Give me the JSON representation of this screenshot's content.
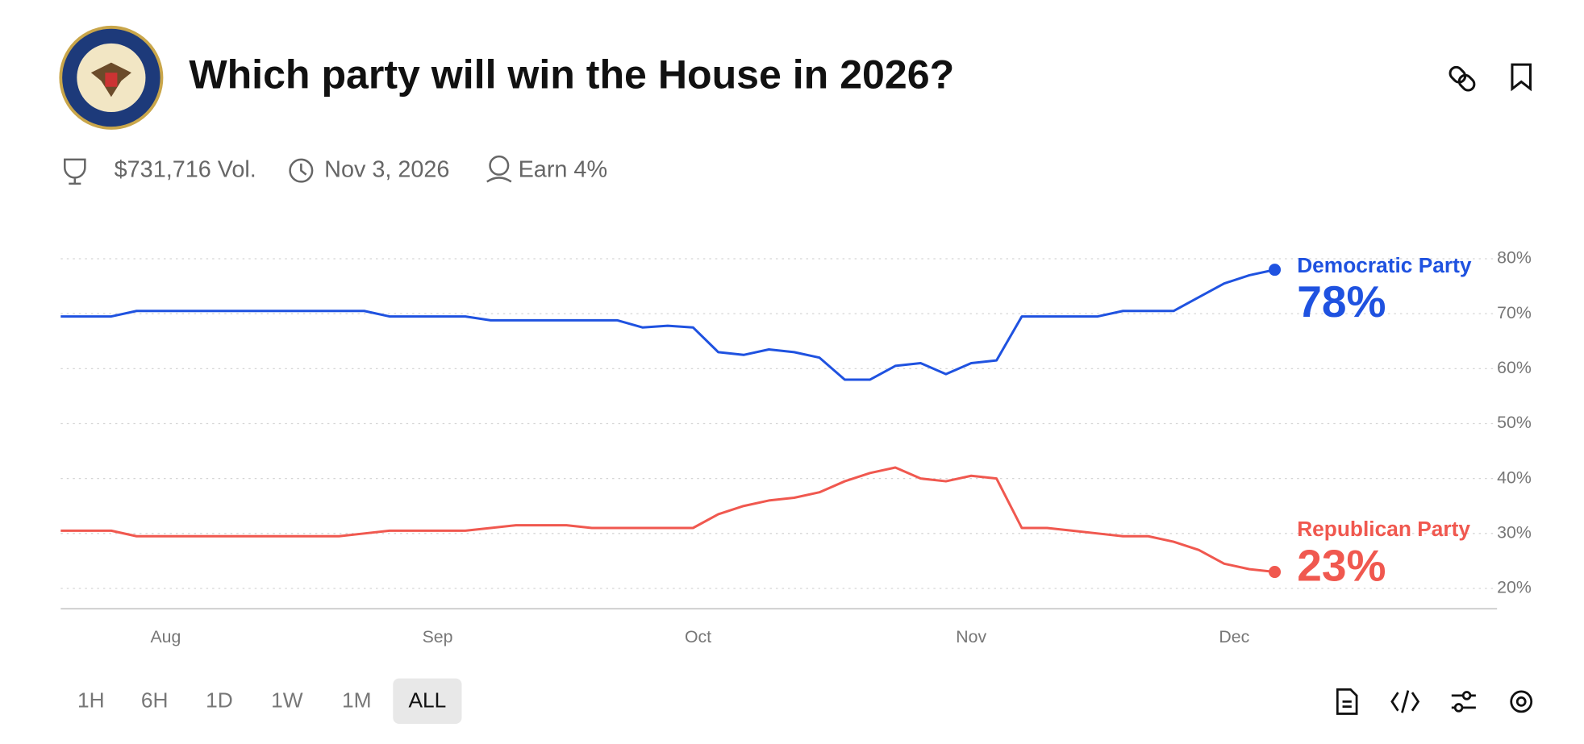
{
  "header": {
    "title": "Which party will win the House in 2026?",
    "volume": "$731,716 Vol.",
    "end_date": "Nov 3, 2026",
    "earn": "Earn 4%"
  },
  "timeframes": {
    "options": [
      "1H",
      "6H",
      "1D",
      "1W",
      "1M",
      "ALL"
    ],
    "selected": 5
  },
  "chart_data": {
    "type": "line",
    "grid": true,
    "xlim": [
      0,
      56.8
    ],
    "xticks": [
      {
        "value": 4.15,
        "label": "Aug"
      },
      {
        "value": 14.9,
        "label": "Sep"
      },
      {
        "value": 25.2,
        "label": "Oct"
      },
      {
        "value": 36.0,
        "label": "Nov"
      },
      {
        "value": 46.4,
        "label": "Dec"
      }
    ],
    "ylim": [
      16.3,
      83
    ],
    "yticks": [
      {
        "value": 20,
        "label": "20%"
      },
      {
        "value": 30,
        "label": "30%"
      },
      {
        "value": 40,
        "label": "40%"
      },
      {
        "value": 50,
        "label": "50%"
      },
      {
        "value": 60,
        "label": "60%"
      },
      {
        "value": 70,
        "label": "70%"
      },
      {
        "value": 80,
        "label": "80%"
      }
    ],
    "series": [
      {
        "name": "Democratic Party",
        "color": "#1f52e0",
        "values": [
          69.5,
          69.5,
          69.5,
          70.5,
          70.5,
          70.5,
          70.5,
          70.5,
          70.5,
          70.5,
          70.5,
          70.5,
          70.5,
          69.5,
          69.5,
          69.5,
          69.5,
          68.8,
          68.8,
          68.8,
          68.8,
          68.8,
          68.8,
          67.5,
          67.8,
          67.5,
          63,
          62.5,
          63.5,
          63,
          62,
          58,
          58,
          60.5,
          61,
          59,
          61,
          61.5,
          69.5,
          69.5,
          69.5,
          69.5,
          70.5,
          70.5,
          70.5,
          73,
          75.5,
          77,
          78
        ],
        "value_labels": [
          null,
          null,
          null,
          null,
          null,
          null,
          null,
          null,
          null,
          null,
          null,
          null,
          null,
          null,
          null,
          null,
          null,
          null,
          null,
          null,
          null,
          null,
          null,
          null,
          null,
          null,
          null,
          null,
          null,
          null,
          null,
          null,
          null,
          null,
          null,
          null,
          null,
          null,
          null,
          null,
          null,
          null,
          null,
          null,
          null,
          null,
          null,
          null,
          "78%"
        ]
      },
      {
        "name": "Republican Party",
        "color": "#f0584f",
        "values": [
          30.5,
          30.5,
          30.5,
          29.5,
          29.5,
          29.5,
          29.5,
          29.5,
          29.5,
          29.5,
          29.5,
          29.5,
          30,
          30.5,
          30.5,
          30.5,
          30.5,
          31,
          31.5,
          31.5,
          31.5,
          31,
          31,
          31,
          31,
          31,
          33.5,
          35,
          36,
          36.5,
          37.5,
          39.5,
          41,
          42,
          40,
          39.5,
          40.5,
          40,
          31,
          31,
          30.5,
          30,
          29.5,
          29.5,
          28.5,
          27,
          24.5,
          23.5,
          23
        ],
        "value_labels": [
          null,
          null,
          null,
          null,
          null,
          null,
          null,
          null,
          null,
          null,
          null,
          null,
          null,
          null,
          null,
          null,
          null,
          null,
          null,
          null,
          null,
          null,
          null,
          null,
          null,
          null,
          null,
          null,
          null,
          null,
          null,
          null,
          null,
          null,
          null,
          null,
          null,
          null,
          null,
          null,
          null,
          null,
          null,
          null,
          null,
          null,
          null,
          null,
          "23%"
        ]
      }
    ]
  }
}
